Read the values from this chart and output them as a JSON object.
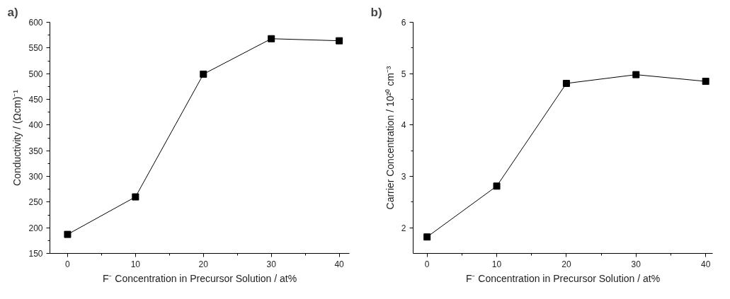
{
  "chart_data": [
    {
      "type": "line",
      "title": "a)",
      "xlabel": "F⁻ Concentration in Precursor Solution / at%",
      "ylabel": "Conductivity / (Ωcm)⁻¹",
      "x": [
        0,
        10,
        20,
        30,
        40
      ],
      "series": [
        {
          "color": "#000000",
          "values": [
            187,
            260,
            499,
            568,
            564
          ]
        }
      ],
      "xlim": [
        -2.6,
        41.5
      ],
      "ylim": [
        150,
        600
      ],
      "xticks": [
        0,
        {
          "value": 5,
          "label": null
        },
        10,
        {
          "value": 15,
          "label": null
        },
        20,
        {
          "value": 25,
          "label": null
        },
        30,
        {
          "value": 35,
          "label": null
        },
        40
      ],
      "yticks": [
        150,
        {
          "value": 175,
          "label": null
        },
        200,
        {
          "value": 225,
          "label": null
        },
        250,
        {
          "value": 275,
          "label": null
        },
        300,
        {
          "value": 325,
          "label": null
        },
        350,
        {
          "value": 375,
          "label": null
        },
        400,
        {
          "value": 425,
          "label": null
        },
        450,
        {
          "value": 475,
          "label": null
        },
        500,
        {
          "value": 525,
          "label": null
        },
        550,
        {
          "value": 575,
          "label": null
        },
        600
      ],
      "marker": "square",
      "line_style": "solid"
    },
    {
      "type": "line",
      "title": "b)",
      "xlabel": "F⁻ Concentration in Precursor Solution / at%",
      "ylabel": "Carrier Concentration / 10²⁰ cm⁻³",
      "x": [
        0,
        10,
        20,
        30,
        40
      ],
      "series": [
        {
          "color": "#000000",
          "values": [
            1.82,
            2.81,
            4.81,
            4.98,
            4.85
          ]
        }
      ],
      "xlim": [
        -2,
        41
      ],
      "ylim": [
        1.5,
        6
      ],
      "xticks": [
        0,
        {
          "value": 5,
          "label": null
        },
        10,
        {
          "value": 15,
          "label": null
        },
        20,
        {
          "value": 25,
          "label": null
        },
        30,
        {
          "value": 35,
          "label": null
        },
        40
      ],
      "yticks": [
        2,
        {
          "value": 2.5,
          "label": null
        },
        3,
        {
          "value": 3.5,
          "label": null
        },
        4,
        {
          "value": 4.5,
          "label": null
        },
        5,
        {
          "value": 5.5,
          "label": null
        },
        6
      ],
      "marker": "square",
      "line_style": "solid"
    }
  ]
}
